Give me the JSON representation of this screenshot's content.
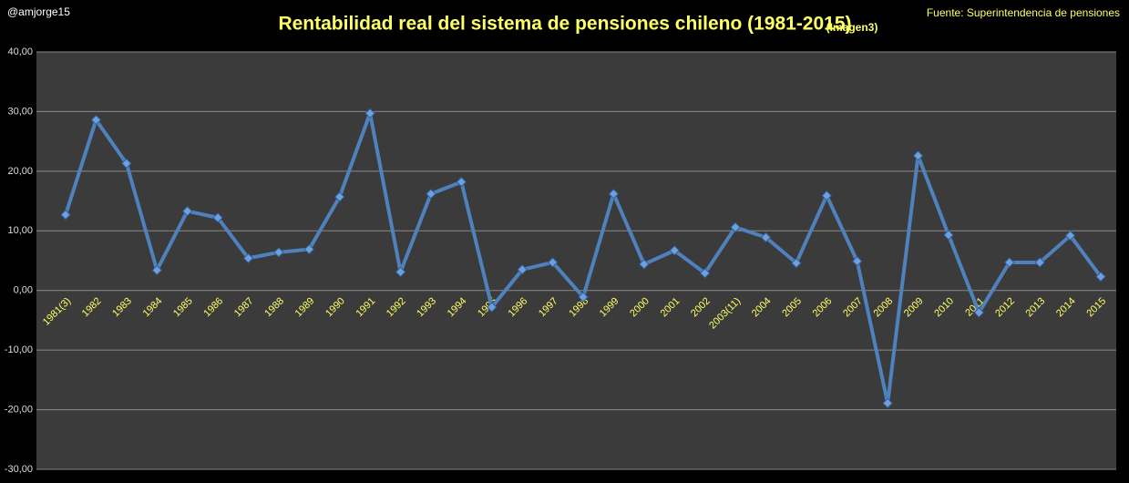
{
  "chart_data": {
    "type": "line",
    "title": "Rentabilidad real del sistema de pensiones chileno (1981-2015)",
    "title_note": "(Imagen3)",
    "author": "@amjorge15",
    "source": "Fuente: Superintendencia de pensiones",
    "categories": [
      "1981(3)",
      "1982",
      "1983",
      "1984",
      "1985",
      "1986",
      "1987",
      "1988",
      "1989",
      "1990",
      "1991",
      "1992",
      "1993",
      "1994",
      "1995",
      "1996",
      "1997",
      "1998",
      "1999",
      "2000",
      "2001",
      "2002",
      "2003(11)",
      "2004",
      "2005",
      "2006",
      "2007",
      "2008",
      "2009",
      "2010",
      "2011",
      "2012",
      "2013",
      "2014",
      "2015"
    ],
    "values": [
      12.7,
      28.6,
      21.3,
      3.4,
      13.3,
      12.2,
      5.4,
      6.4,
      6.9,
      15.7,
      29.7,
      3.1,
      16.2,
      18.2,
      -2.8,
      3.5,
      4.7,
      -1.1,
      16.2,
      4.4,
      6.7,
      2.9,
      10.6,
      8.9,
      4.6,
      15.9,
      4.9,
      -18.9,
      22.6,
      9.3,
      -3.7,
      4.7,
      4.7,
      9.2,
      2.3
    ],
    "color": "#4f81bd",
    "ylim": [
      -30,
      40
    ],
    "yticks": [
      {
        "value": -30,
        "label": "-30,00"
      },
      {
        "value": -20,
        "label": "-20,00"
      },
      {
        "value": -10,
        "label": "-10,00"
      },
      {
        "value": 0,
        "label": "0,00"
      },
      {
        "value": 10,
        "label": "10,00"
      },
      {
        "value": 20,
        "label": "20,00"
      },
      {
        "value": 30,
        "label": "30,00"
      },
      {
        "value": 40,
        "label": "40,00"
      }
    ],
    "grid": true
  }
}
